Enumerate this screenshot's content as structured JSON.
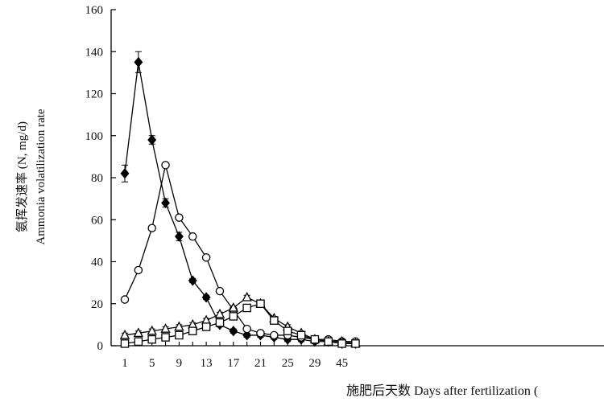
{
  "chart_data": {
    "type": "line",
    "xlabel": "施肥后天数 Days after fertilization (",
    "ylabel_line1": "氨挥发速率 (N, mg/d)",
    "ylabel_line2": "Ammonia volatilization rate",
    "x_tick_labels": [
      "1",
      "5",
      "9",
      "13",
      "17",
      "21",
      "25",
      "29",
      "45"
    ],
    "y_ticks": [
      0,
      20,
      40,
      60,
      80,
      100,
      120,
      140,
      160
    ],
    "ylim": [
      0,
      160
    ],
    "grid": false,
    "legend": "none",
    "x": [
      "1",
      "3",
      "5",
      "7",
      "9",
      "11",
      "13",
      "15",
      "17",
      "19",
      "21",
      "23",
      "25",
      "27",
      "29",
      "31",
      "45",
      "47"
    ],
    "series": [
      {
        "marker": "diamond-filled",
        "values": [
          82,
          135,
          98,
          68,
          52,
          31,
          23,
          10,
          7,
          5,
          5,
          4,
          3,
          3,
          2,
          2,
          1,
          1
        ],
        "errors": [
          4,
          5,
          2,
          2,
          2,
          1,
          1,
          1,
          1,
          1,
          1,
          1,
          1,
          1,
          1,
          1,
          1,
          1
        ]
      },
      {
        "marker": "circle-open",
        "values": [
          22,
          36,
          56,
          86,
          61,
          52,
          42,
          26,
          17,
          8,
          6,
          5,
          5,
          4,
          3,
          3,
          2,
          2
        ],
        "errors": [
          1,
          1,
          1,
          1,
          1,
          1,
          1,
          1,
          1,
          1,
          1,
          1,
          1,
          1,
          1,
          1,
          1,
          1
        ]
      },
      {
        "marker": "triangle-open",
        "values": [
          5,
          6,
          7,
          8,
          9,
          10,
          12,
          15,
          18,
          23,
          20,
          13,
          9,
          6,
          3,
          2,
          2,
          1
        ],
        "errors": [
          1,
          1,
          1,
          1,
          1,
          1,
          1,
          1,
          1,
          1,
          1,
          1,
          1,
          1,
          1,
          1,
          1,
          1
        ]
      },
      {
        "marker": "square-open",
        "values": [
          1,
          2,
          3,
          4,
          5,
          7,
          9,
          11,
          14,
          18,
          20,
          12,
          7,
          5,
          3,
          2,
          1,
          1
        ],
        "errors": [
          1,
          1,
          1,
          1,
          1,
          1,
          1,
          1,
          1,
          1,
          1,
          1,
          1,
          1,
          1,
          1,
          1,
          1
        ]
      }
    ]
  }
}
